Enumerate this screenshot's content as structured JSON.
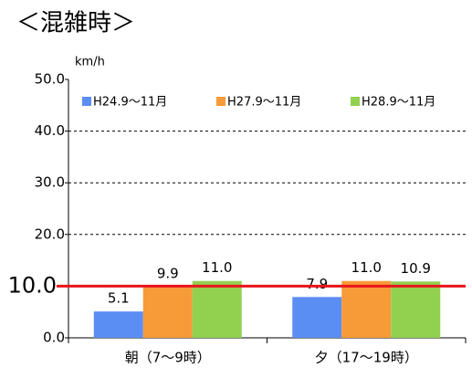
{
  "chart_data": {
    "type": "bar",
    "title": "＜混雑時＞",
    "y_unit": "km/h",
    "categories": [
      "朝（7〜9時）",
      "夕（17〜19時）"
    ],
    "series": [
      {
        "name": "H24.9〜11月",
        "color": "#5b8ef2",
        "values": [
          5.1,
          7.9
        ],
        "value_labels": [
          "5.1",
          "7.9"
        ]
      },
      {
        "name": "H27.9〜11月",
        "color": "#f79a38",
        "values": [
          9.9,
          11.0
        ],
        "value_labels": [
          "9.9",
          "11.0"
        ]
      },
      {
        "name": "H28.9〜11月",
        "color": "#92d050",
        "values": [
          11.0,
          10.9
        ],
        "value_labels": [
          "11.0",
          "10.9"
        ]
      }
    ],
    "ylim": [
      0,
      50
    ],
    "yticks": [
      {
        "value": 0,
        "label": "0.0"
      },
      {
        "value": 20,
        "label": "20.0"
      },
      {
        "value": 30,
        "label": "30.0"
      },
      {
        "value": 40,
        "label": "40.0"
      },
      {
        "value": 50,
        "label": "50.0"
      }
    ],
    "grid": true,
    "reference_line": {
      "value": 10,
      "label": "10.0",
      "color": "#e8141c"
    },
    "legend": "top"
  }
}
